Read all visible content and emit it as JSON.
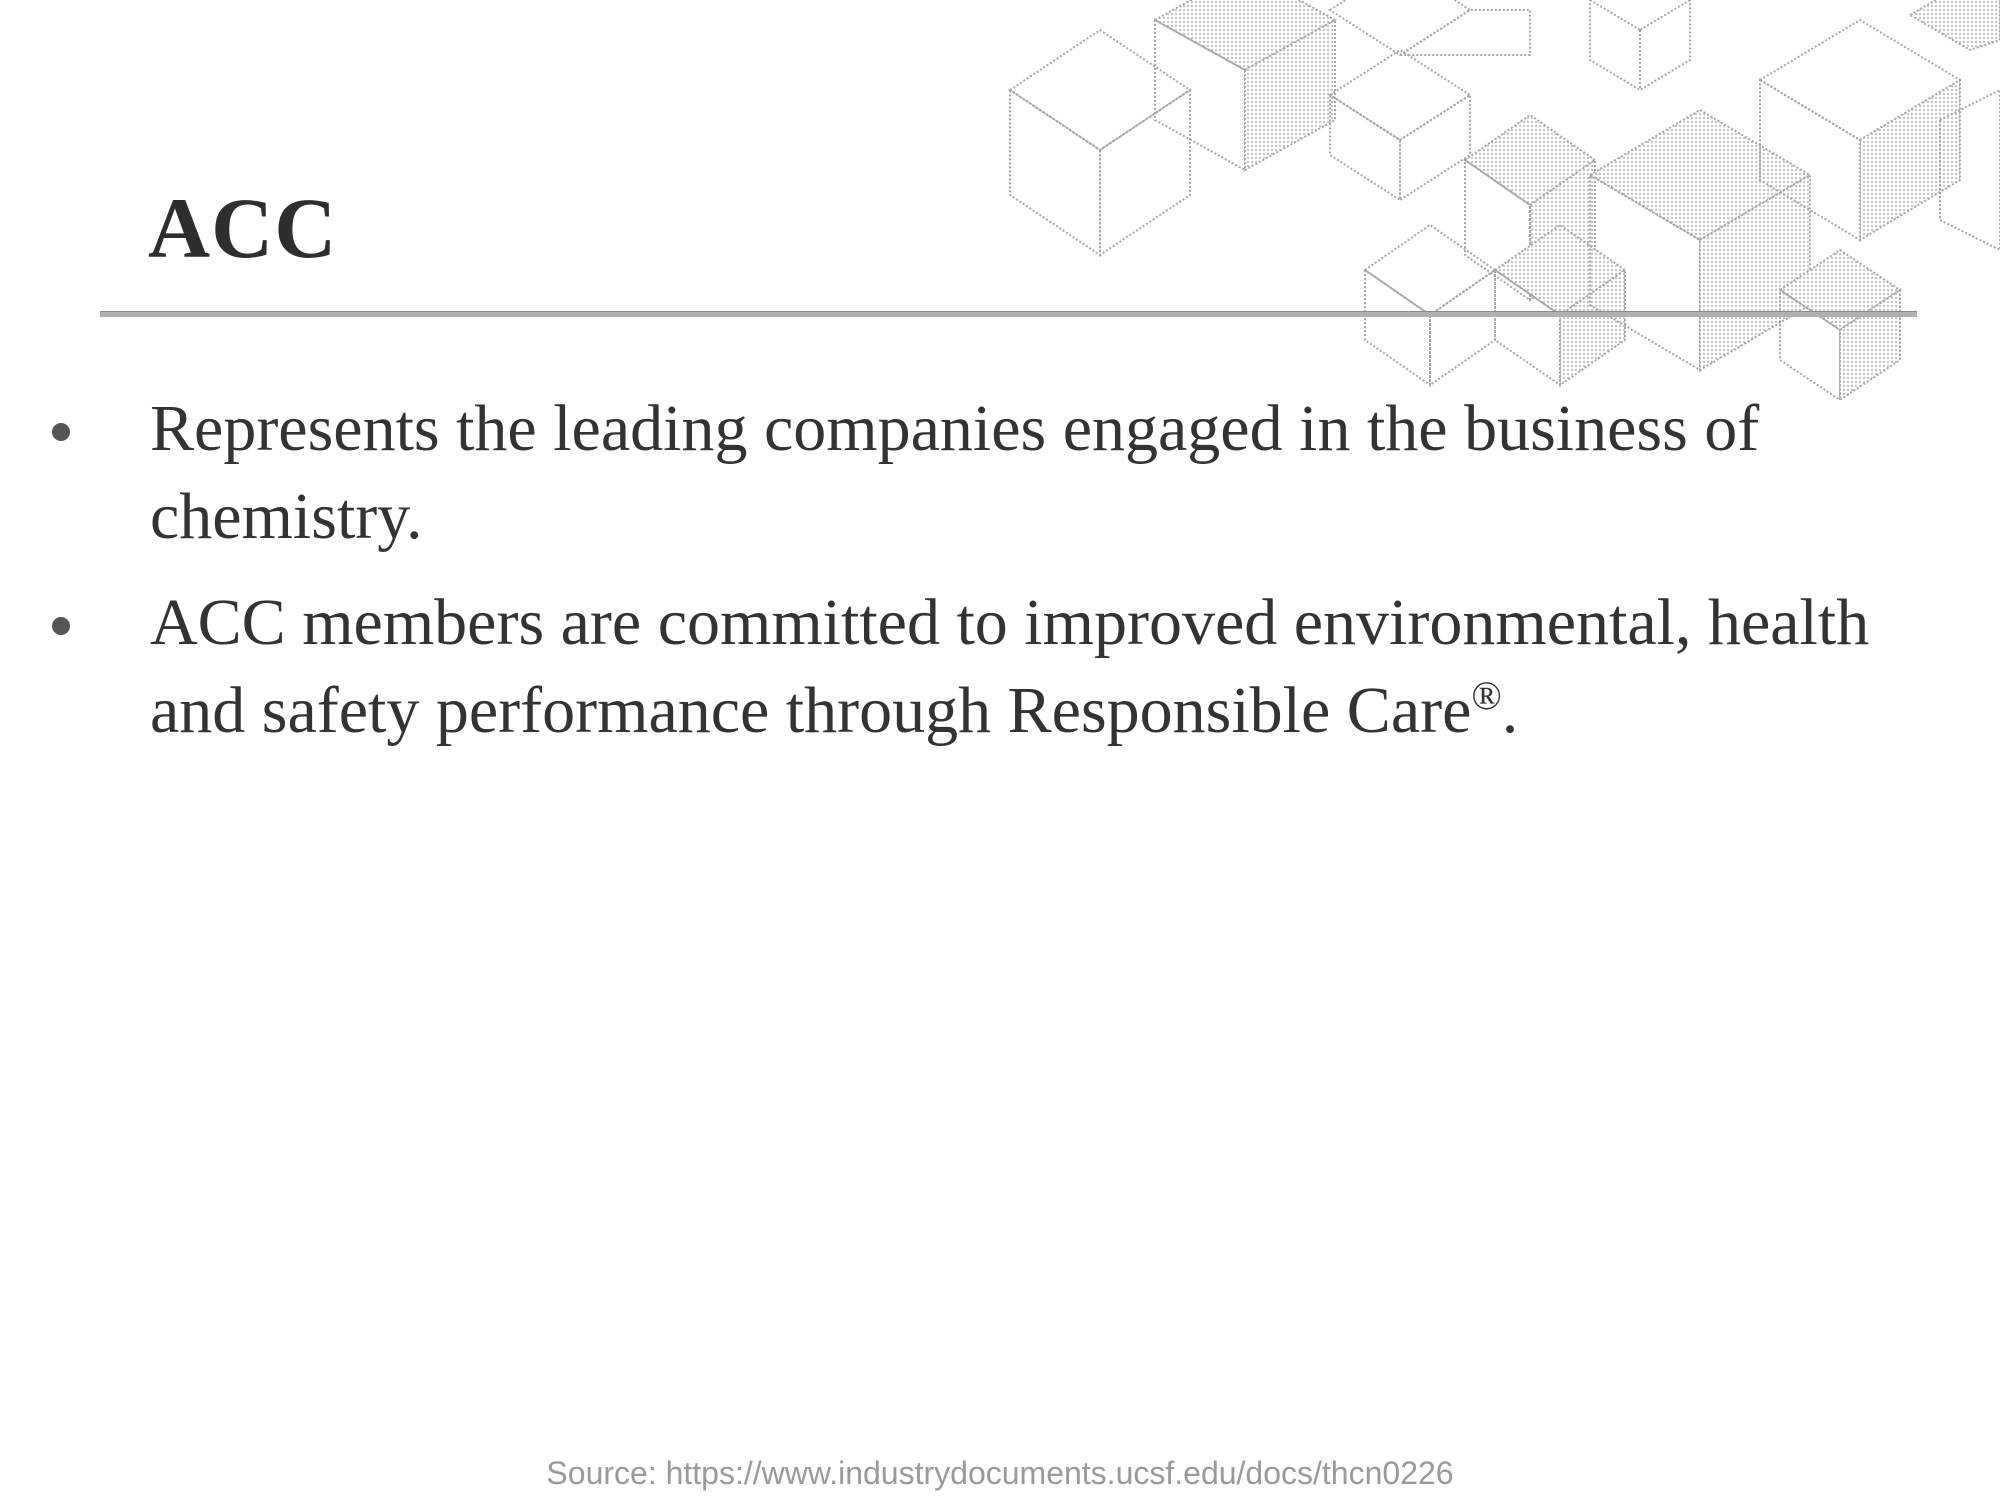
{
  "slide": {
    "title": "ACC",
    "bullets": [
      {
        "text": "Represents the leading companies engaged in the business of chemistry."
      },
      {
        "text": "ACC members are committed to improved environmental, health and safety performance through Responsible Care",
        "superscript": "®",
        "suffix": "."
      }
    ]
  },
  "footer": {
    "source": "Source: https://www.industrydocuments.ucsf.edu/docs/thcn0226"
  },
  "decoration": {
    "icon": "isometric-cubes-pattern",
    "stroke_color": "#9a9a9a",
    "shade_color": "#dcdcdc"
  }
}
